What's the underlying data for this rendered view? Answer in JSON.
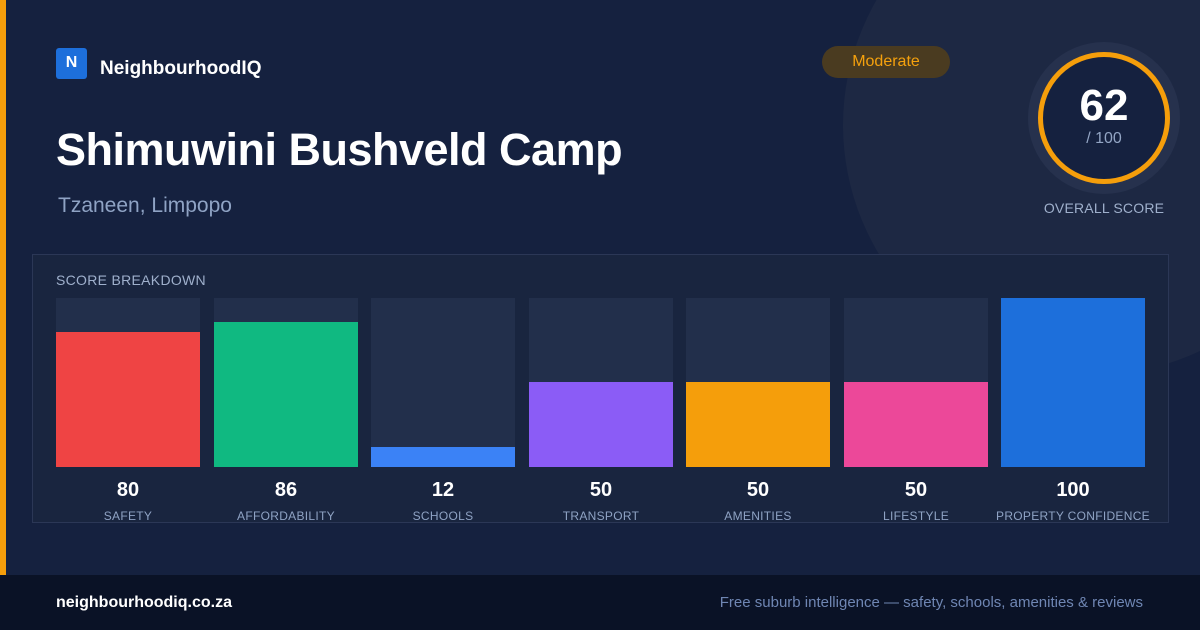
{
  "brand": {
    "logo_letter": "N",
    "name": "NeighbourhoodIQ"
  },
  "place": {
    "name": "Shimuwini Bushveld Camp",
    "location": "Tzaneen, Limpopo"
  },
  "rating": {
    "label": "Moderate"
  },
  "overall": {
    "score": "62",
    "max": "/ 100",
    "caption": "OVERALL SCORE"
  },
  "breakdown": {
    "title": "SCORE BREAKDOWN",
    "items": [
      {
        "label": "SAFETY",
        "value": 80,
        "color": "#ef4444"
      },
      {
        "label": "AFFORDABILITY",
        "value": 86,
        "color": "#10b981"
      },
      {
        "label": "SCHOOLS",
        "value": 12,
        "color": "#3b82f6"
      },
      {
        "label": "TRANSPORT",
        "value": 50,
        "color": "#8b5cf6"
      },
      {
        "label": "AMENITIES",
        "value": 50,
        "color": "#f59e0b"
      },
      {
        "label": "LIFESTYLE",
        "value": 50,
        "color": "#ec4899"
      },
      {
        "label": "PROPERTY CONFIDENCE",
        "value": 100,
        "color": "#1d6fdb"
      }
    ]
  },
  "footer": {
    "domain": "neighbourhoodiq.co.za",
    "tagline": "Free suburb intelligence — safety, schools, amenities & reviews"
  },
  "colors": {
    "accent": "#f59e0b",
    "brand": "#1d6fdb"
  }
}
